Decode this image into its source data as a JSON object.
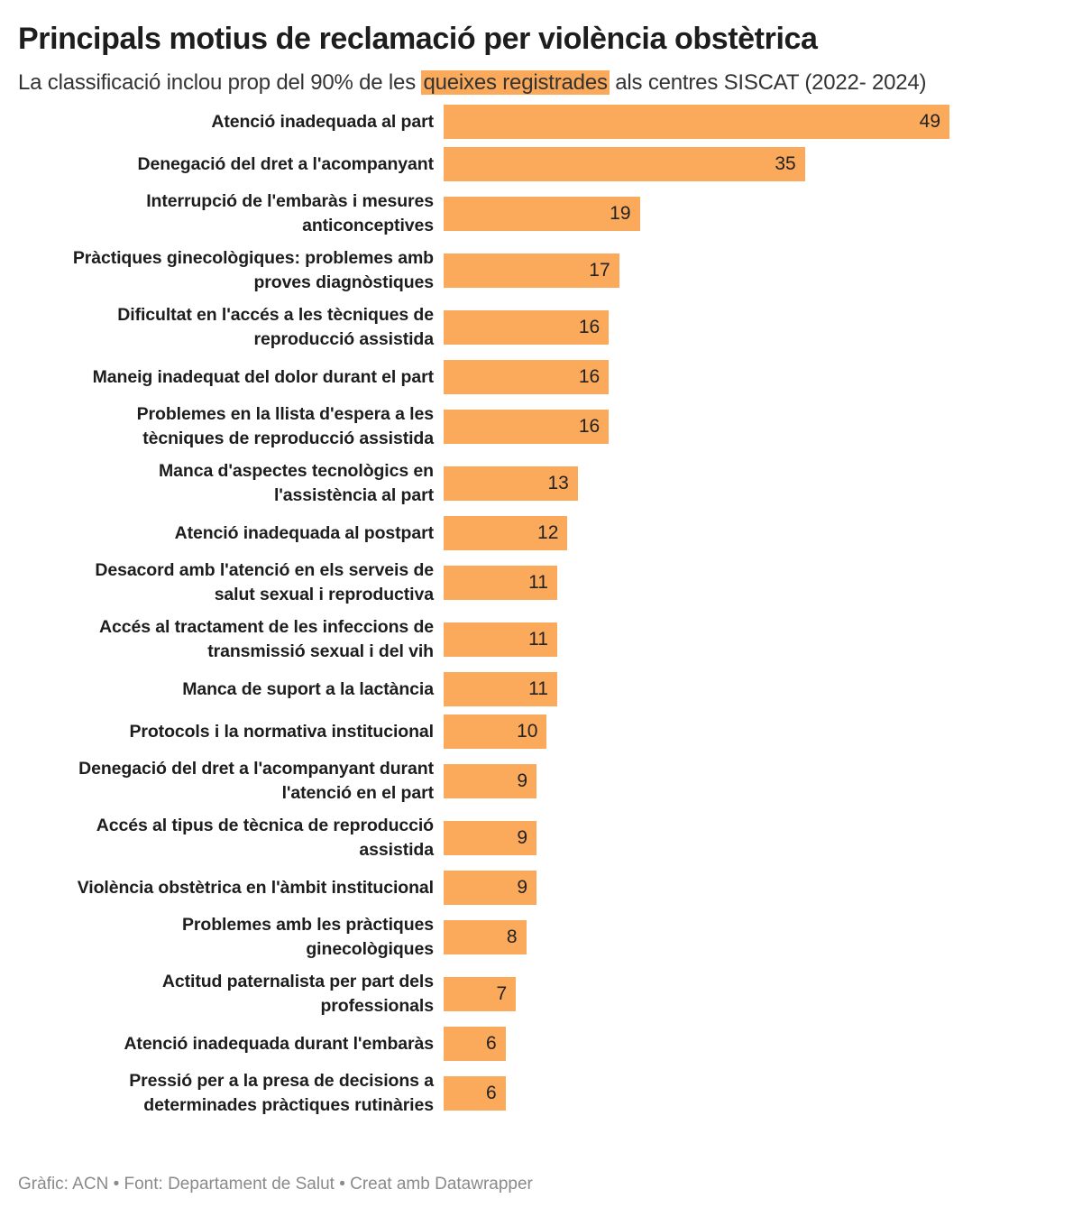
{
  "title": "Principals motius de reclamació per violència obstètrica",
  "subtitle": {
    "before": "La classificació inclou prop del 90% de les ",
    "highlight": "queixes registrades",
    "after": " als centres SISCAT (2022- 2024)",
    "highlight_color": "#fba95b"
  },
  "footer": "Gràfic: ACN • Font: Departament de Salut • Creat amb Datawrapper",
  "chart_data": {
    "type": "bar",
    "orientation": "horizontal",
    "bar_color": "#fba95b",
    "xlim": [
      0,
      49
    ],
    "grid": false,
    "categories": [
      [
        "Atenció inadequada al part"
      ],
      [
        "Denegació del dret a l'acompanyant"
      ],
      [
        "Interrupció de l'embaràs i mesures",
        "anticonceptives"
      ],
      [
        "Pràctiques ginecològiques: problemes amb",
        "proves diagnòstiques"
      ],
      [
        "Dificultat en l'accés a les tècniques de",
        "reproducció assistida"
      ],
      [
        "Maneig inadequat del dolor durant el part"
      ],
      [
        "Problemes en la llista d'espera a les",
        "tècniques de reproducció assistida"
      ],
      [
        "Manca d'aspectes tecnològics en",
        "l'assistència al part"
      ],
      [
        "Atenció inadequada al postpart"
      ],
      [
        "Desacord amb l'atenció en els serveis de",
        "salut sexual i reproductiva"
      ],
      [
        "Accés al tractament de les infeccions de",
        "transmissió sexual i del vih"
      ],
      [
        "Manca de suport a la lactància"
      ],
      [
        "Protocols i la normativa institucional"
      ],
      [
        "Denegació del dret a l'acompanyant durant",
        "l'atenció en el part"
      ],
      [
        "Accés al tipus de tècnica de reproducció",
        "assistida"
      ],
      [
        "Violència obstètrica en l'àmbit institucional"
      ],
      [
        "Problemes amb les pràctiques",
        "ginecològiques"
      ],
      [
        "Actitud paternalista per part dels",
        "professionals"
      ],
      [
        "Atenció inadequada durant l'embaràs"
      ],
      [
        "Pressió per a la presa de decisions a",
        "determinades pràctiques rutinàries"
      ]
    ],
    "values": [
      49,
      35,
      19,
      17,
      16,
      16,
      16,
      13,
      12,
      11,
      11,
      11,
      10,
      9,
      9,
      9,
      8,
      7,
      6,
      6
    ]
  }
}
